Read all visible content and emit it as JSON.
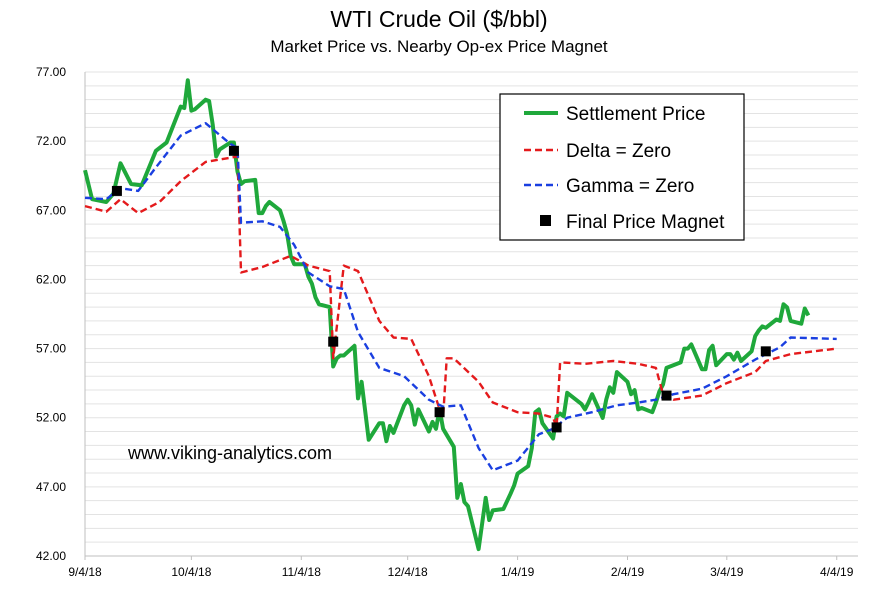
{
  "chart_data": {
    "type": "line",
    "title": "WTI Crude Oil ($/bbl)",
    "subtitle": "Market Price vs. Nearby Op-ex Price Magnet",
    "watermark": "www.viking-analytics.com",
    "xlabel": "",
    "ylabel": "",
    "x_ticks": [
      "9/4/18",
      "10/4/18",
      "11/4/18",
      "12/4/18",
      "1/4/19",
      "2/4/19",
      "3/4/19",
      "4/4/19"
    ],
    "y_ticks": [
      "42.00",
      "47.00",
      "52.00",
      "57.00",
      "62.00",
      "67.00",
      "72.00",
      "77.00"
    ],
    "ylim": [
      42,
      77
    ],
    "xlim": [
      "2018-09-04",
      "2019-04-04"
    ],
    "grid": true,
    "legend": "top-right",
    "series": [
      {
        "name": "Settlement Price",
        "style": "solid",
        "color": "#1fa83b",
        "points": [
          [
            "2018-09-04",
            69.9
          ],
          [
            "2018-09-06",
            67.8
          ],
          [
            "2018-09-10",
            67.6
          ],
          [
            "2018-09-12",
            68.2
          ],
          [
            "2018-09-14",
            70.4
          ],
          [
            "2018-09-17",
            68.9
          ],
          [
            "2018-09-20",
            68.8
          ],
          [
            "2018-09-24",
            71.3
          ],
          [
            "2018-09-27",
            71.9
          ],
          [
            "2018-10-01",
            74.5
          ],
          [
            "2018-10-02",
            74.4
          ],
          [
            "2018-10-03",
            76.4
          ],
          [
            "2018-10-04",
            74.2
          ],
          [
            "2018-10-05",
            74.3
          ],
          [
            "2018-10-08",
            75.0
          ],
          [
            "2018-10-09",
            74.9
          ],
          [
            "2018-10-10",
            73.2
          ],
          [
            "2018-10-11",
            70.9
          ],
          [
            "2018-10-12",
            71.4
          ],
          [
            "2018-10-15",
            71.9
          ],
          [
            "2018-10-16",
            71.9
          ],
          [
            "2018-10-17",
            69.8
          ],
          [
            "2018-10-18",
            68.9
          ],
          [
            "2018-10-19",
            69.1
          ],
          [
            "2018-10-22",
            69.2
          ],
          [
            "2018-10-23",
            66.8
          ],
          [
            "2018-10-24",
            66.8
          ],
          [
            "2018-10-25",
            67.3
          ],
          [
            "2018-10-26",
            67.6
          ],
          [
            "2018-10-29",
            67.0
          ],
          [
            "2018-10-30",
            66.2
          ],
          [
            "2018-10-31",
            65.3
          ],
          [
            "2018-11-01",
            63.7
          ],
          [
            "2018-11-02",
            63.1
          ],
          [
            "2018-11-05",
            63.1
          ],
          [
            "2018-11-06",
            62.2
          ],
          [
            "2018-11-07",
            61.7
          ],
          [
            "2018-11-08",
            60.7
          ],
          [
            "2018-11-09",
            60.2
          ],
          [
            "2018-11-12",
            60.0
          ],
          [
            "2018-11-13",
            55.7
          ],
          [
            "2018-11-14",
            56.3
          ],
          [
            "2018-11-15",
            56.5
          ],
          [
            "2018-11-16",
            56.5
          ],
          [
            "2018-11-19",
            57.2
          ],
          [
            "2018-11-20",
            53.4
          ],
          [
            "2018-11-21",
            54.6
          ],
          [
            "2018-11-23",
            50.4
          ],
          [
            "2018-11-26",
            51.6
          ],
          [
            "2018-11-27",
            51.6
          ],
          [
            "2018-11-28",
            50.3
          ],
          [
            "2018-11-29",
            51.4
          ],
          [
            "2018-11-30",
            50.9
          ],
          [
            "2018-12-03",
            52.9
          ],
          [
            "2018-12-04",
            53.3
          ],
          [
            "2018-12-05",
            52.9
          ],
          [
            "2018-12-06",
            51.5
          ],
          [
            "2018-12-07",
            52.6
          ],
          [
            "2018-12-10",
            51.0
          ],
          [
            "2018-12-11",
            51.7
          ],
          [
            "2018-12-12",
            51.2
          ],
          [
            "2018-12-13",
            52.6
          ],
          [
            "2018-12-14",
            51.2
          ],
          [
            "2018-12-17",
            49.9
          ],
          [
            "2018-12-18",
            46.2
          ],
          [
            "2018-12-19",
            47.2
          ],
          [
            "2018-12-20",
            45.9
          ],
          [
            "2018-12-21",
            45.6
          ],
          [
            "2018-12-24",
            42.5
          ],
          [
            "2018-12-26",
            46.2
          ],
          [
            "2018-12-27",
            44.6
          ],
          [
            "2018-12-28",
            45.3
          ],
          [
            "2018-12-31",
            45.4
          ],
          [
            "2019-01-02",
            46.5
          ],
          [
            "2019-01-03",
            47.1
          ],
          [
            "2019-01-04",
            47.96
          ],
          [
            "2019-01-07",
            48.5
          ],
          [
            "2019-01-08",
            49.8
          ],
          [
            "2019-01-09",
            52.4
          ],
          [
            "2019-01-10",
            52.6
          ],
          [
            "2019-01-11",
            51.6
          ],
          [
            "2019-01-14",
            50.5
          ],
          [
            "2019-01-15",
            52.1
          ],
          [
            "2019-01-16",
            52.3
          ],
          [
            "2019-01-17",
            52.1
          ],
          [
            "2019-01-18",
            53.8
          ],
          [
            "2019-01-22",
            53.0
          ],
          [
            "2019-01-23",
            52.6
          ],
          [
            "2019-01-24",
            53.1
          ],
          [
            "2019-01-25",
            53.7
          ],
          [
            "2019-01-28",
            51.99
          ],
          [
            "2019-01-29",
            53.3
          ],
          [
            "2019-01-30",
            54.2
          ],
          [
            "2019-01-31",
            53.8
          ],
          [
            "2019-02-01",
            55.3
          ],
          [
            "2019-02-04",
            54.6
          ],
          [
            "2019-02-05",
            53.7
          ],
          [
            "2019-02-06",
            54.0
          ],
          [
            "2019-02-07",
            52.6
          ],
          [
            "2019-02-08",
            52.7
          ],
          [
            "2019-02-11",
            52.4
          ],
          [
            "2019-02-12",
            53.1
          ],
          [
            "2019-02-13",
            53.9
          ],
          [
            "2019-02-14",
            54.4
          ],
          [
            "2019-02-15",
            55.6
          ],
          [
            "2019-02-19",
            56.0
          ],
          [
            "2019-02-20",
            57.0
          ],
          [
            "2019-02-21",
            57.0
          ],
          [
            "2019-02-22",
            57.3
          ],
          [
            "2019-02-25",
            55.5
          ],
          [
            "2019-02-26",
            55.5
          ],
          [
            "2019-02-27",
            56.9
          ],
          [
            "2019-02-28",
            57.2
          ],
          [
            "2019-03-01",
            55.8
          ],
          [
            "2019-03-04",
            56.6
          ],
          [
            "2019-03-05",
            56.6
          ],
          [
            "2019-03-06",
            56.2
          ],
          [
            "2019-03-07",
            56.7
          ],
          [
            "2019-03-08",
            56.1
          ],
          [
            "2019-03-11",
            56.8
          ],
          [
            "2019-03-12",
            57.9
          ],
          [
            "2019-03-13",
            58.3
          ],
          [
            "2019-03-14",
            58.6
          ],
          [
            "2019-03-15",
            58.5
          ],
          [
            "2019-03-18",
            59.1
          ],
          [
            "2019-03-19",
            59.0
          ],
          [
            "2019-03-20",
            60.2
          ],
          [
            "2019-03-21",
            59.98
          ],
          [
            "2019-03-22",
            59.0
          ],
          [
            "2019-03-25",
            58.8
          ],
          [
            "2019-03-26",
            59.9
          ],
          [
            "2019-03-27",
            59.4
          ]
        ]
      },
      {
        "name": "Delta = Zero",
        "style": "dashed",
        "color": "#e41a1c",
        "points": [
          [
            "2018-09-04",
            67.3
          ],
          [
            "2018-09-10",
            66.9
          ],
          [
            "2018-09-14",
            67.8
          ],
          [
            "2018-09-19",
            66.8
          ],
          [
            "2018-09-25",
            67.6
          ],
          [
            "2018-10-01",
            69.1
          ],
          [
            "2018-10-08",
            70.5
          ],
          [
            "2018-10-15",
            70.8
          ],
          [
            "2018-10-17",
            70.9
          ],
          [
            "2018-10-18",
            62.5
          ],
          [
            "2018-10-24",
            62.9
          ],
          [
            "2018-11-01",
            63.7
          ],
          [
            "2018-11-06",
            63.0
          ],
          [
            "2018-11-12",
            62.6
          ],
          [
            "2018-11-13",
            56.3
          ],
          [
            "2018-11-16",
            63.0
          ],
          [
            "2018-11-20",
            62.6
          ],
          [
            "2018-11-26",
            59.0
          ],
          [
            "2018-11-30",
            57.8
          ],
          [
            "2018-12-05",
            57.7
          ],
          [
            "2018-12-10",
            55.0
          ],
          [
            "2018-12-13",
            52.6
          ],
          [
            "2018-12-14",
            52.0
          ],
          [
            "2018-12-15",
            56.3
          ],
          [
            "2018-12-17",
            56.3
          ],
          [
            "2018-12-24",
            54.6
          ],
          [
            "2018-12-28",
            53.1
          ],
          [
            "2019-01-04",
            52.4
          ],
          [
            "2019-01-10",
            52.3
          ],
          [
            "2019-01-14",
            52.0
          ],
          [
            "2019-01-15",
            51.3
          ],
          [
            "2019-01-16",
            56.0
          ],
          [
            "2019-01-23",
            55.9
          ],
          [
            "2019-01-31",
            56.1
          ],
          [
            "2019-02-07",
            55.9
          ],
          [
            "2019-02-12",
            55.6
          ],
          [
            "2019-02-14",
            53.7
          ],
          [
            "2019-02-17",
            53.3
          ],
          [
            "2019-02-25",
            53.6
          ],
          [
            "2019-03-04",
            54.5
          ],
          [
            "2019-03-12",
            55.3
          ],
          [
            "2019-03-15",
            56.1
          ],
          [
            "2019-03-22",
            56.6
          ],
          [
            "2019-04-04",
            57.0
          ]
        ]
      },
      {
        "name": "Gamma = Zero",
        "style": "dashed",
        "color": "#1a3fe0",
        "points": [
          [
            "2018-09-04",
            67.9
          ],
          [
            "2018-09-10",
            67.8
          ],
          [
            "2018-09-14",
            68.6
          ],
          [
            "2018-09-19",
            68.4
          ],
          [
            "2018-09-24",
            70.1
          ],
          [
            "2018-10-01",
            72.4
          ],
          [
            "2018-10-08",
            73.3
          ],
          [
            "2018-10-15",
            71.8
          ],
          [
            "2018-10-17",
            71.5
          ],
          [
            "2018-10-18",
            66.1
          ],
          [
            "2018-10-24",
            66.2
          ],
          [
            "2018-10-29",
            65.8
          ],
          [
            "2018-11-02",
            64.5
          ],
          [
            "2018-11-06",
            62.5
          ],
          [
            "2018-11-12",
            61.5
          ],
          [
            "2018-11-16",
            61.3
          ],
          [
            "2018-11-20",
            58.2
          ],
          [
            "2018-11-26",
            55.6
          ],
          [
            "2018-12-03",
            55.0
          ],
          [
            "2018-12-10",
            53.3
          ],
          [
            "2018-12-14",
            52.8
          ],
          [
            "2018-12-19",
            52.9
          ],
          [
            "2018-12-24",
            49.8
          ],
          [
            "2018-12-28",
            48.2
          ],
          [
            "2019-01-04",
            48.9
          ],
          [
            "2019-01-10",
            50.8
          ],
          [
            "2019-01-14",
            51.2
          ],
          [
            "2019-01-18",
            52.0
          ],
          [
            "2019-01-25",
            52.4
          ],
          [
            "2019-02-01",
            52.9
          ],
          [
            "2019-02-07",
            53.1
          ],
          [
            "2019-02-12",
            53.3
          ],
          [
            "2019-02-17",
            53.7
          ],
          [
            "2019-02-25",
            54.1
          ],
          [
            "2019-03-04",
            55.0
          ],
          [
            "2019-03-12",
            56.2
          ],
          [
            "2019-03-19",
            57.1
          ],
          [
            "2019-03-22",
            57.8
          ],
          [
            "2019-04-04",
            57.7
          ]
        ]
      },
      {
        "name": "Final Price Magnet",
        "style": "markers",
        "color": "#000000",
        "points": [
          [
            "2018-09-13",
            68.4
          ],
          [
            "2018-10-16",
            71.3
          ],
          [
            "2018-11-13",
            57.5
          ],
          [
            "2018-12-13",
            52.4
          ],
          [
            "2019-01-15",
            51.3
          ],
          [
            "2019-02-15",
            53.6
          ],
          [
            "2019-03-15",
            56.8
          ]
        ]
      }
    ]
  }
}
